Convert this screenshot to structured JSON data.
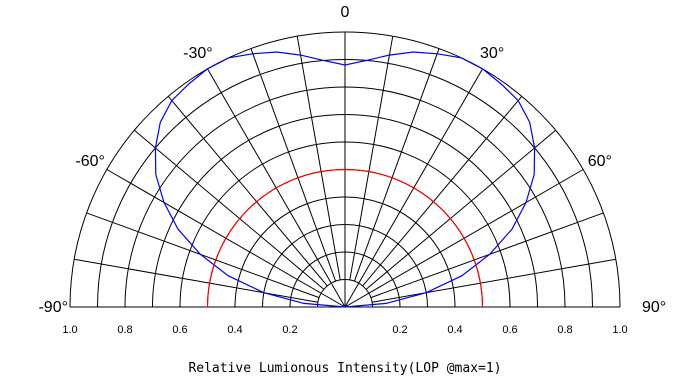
{
  "chart_data": {
    "type": "polar",
    "title": "",
    "xlabel": "Relative Lumionous Intensity(LOP @max=1)",
    "angle_labels": [
      {
        "angle": 0,
        "label": "0"
      },
      {
        "angle": -30,
        "label": "-30°"
      },
      {
        "angle": 30,
        "label": "30°"
      },
      {
        "angle": -60,
        "label": "-60°"
      },
      {
        "angle": 60,
        "label": "60°"
      },
      {
        "angle": -90,
        "label": "-90°"
      },
      {
        "angle": 90,
        "label": "90°"
      }
    ],
    "radial_tick_labels": {
      "left": [
        "1.0",
        "0.8",
        "0.6",
        "0.4",
        "0.2"
      ],
      "right": [
        "0.2",
        "0.4",
        "0.6",
        "0.8",
        "1.0"
      ]
    },
    "angular_range": [
      -90,
      90
    ],
    "angular_grid_step": 10,
    "radial_grid_values": [
      0.1,
      0.2,
      0.3,
      0.4,
      0.5,
      0.6,
      0.7,
      0.8,
      0.9,
      1.0
    ],
    "series": [
      {
        "color": "#0000ff",
        "angles": [
          0,
          5,
          10,
          15,
          20,
          25,
          30,
          35,
          40,
          45,
          50,
          55,
          60,
          65,
          70,
          75,
          80,
          85,
          90
        ],
        "values": [
          0.88,
          0.9,
          0.93,
          0.96,
          0.98,
          1.0,
          1.0,
          0.99,
          0.98,
          0.95,
          0.9,
          0.84,
          0.76,
          0.67,
          0.56,
          0.44,
          0.3,
          0.15,
          0.0
        ],
        "symmetric": true
      },
      {
        "color": "#ff0000",
        "angles": [
          -90,
          90
        ],
        "values": [
          0.5,
          0.5
        ],
        "symmetric": false
      }
    ]
  }
}
